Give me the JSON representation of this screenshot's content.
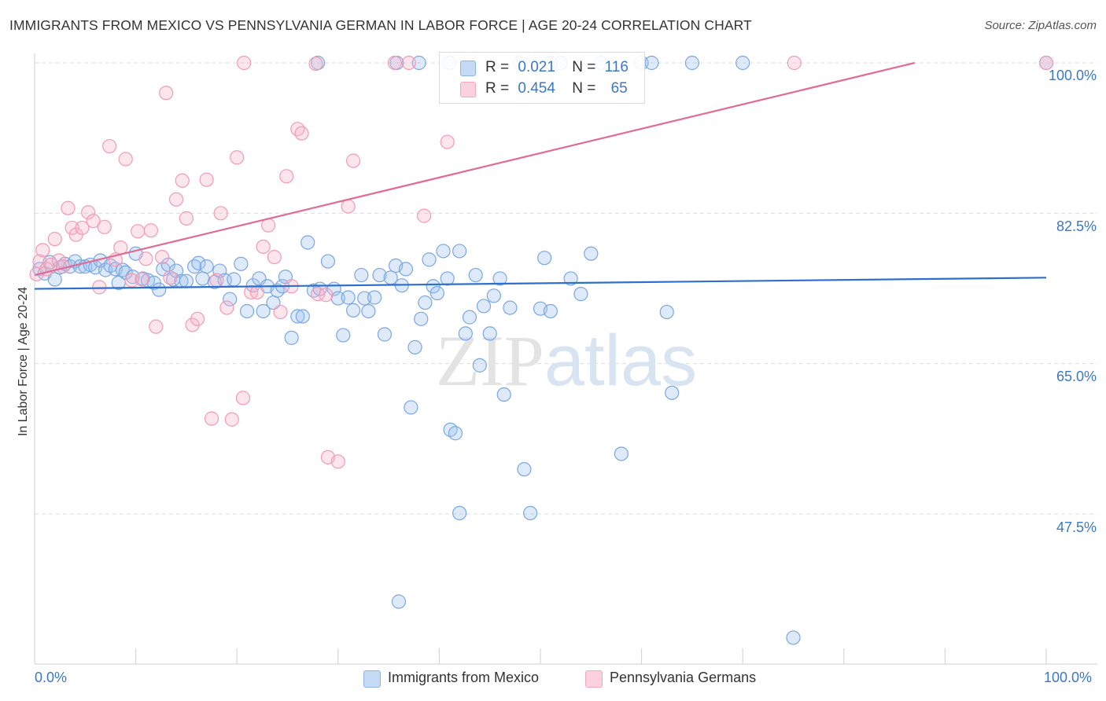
{
  "title": "IMMIGRANTS FROM MEXICO VS PENNSYLVANIA GERMAN IN LABOR FORCE | AGE 20-24 CORRELATION CHART",
  "source": "Source: ZipAtlas.com",
  "watermark": "ZIPatlas",
  "legend": {
    "r_label": "R =",
    "n_label": "N =",
    "rows": [
      {
        "r": "0.021",
        "n": "116",
        "color": "#9dbfea"
      },
      {
        "r": "0.454",
        "n": "65",
        "color": "#f5b5c8"
      }
    ]
  },
  "bottom_legend": [
    "Immigrants from Mexico",
    "Pennsylvania Germans"
  ],
  "x_ticks": {
    "left": "0.0%",
    "right": "100.0%"
  },
  "chart_data": {
    "type": "scatter",
    "title": "IMMIGRANTS FROM MEXICO VS PENNSYLVANIA GERMAN IN LABOR FORCE | AGE 20-24 CORRELATION CHART",
    "xlabel": "",
    "ylabel": "In Labor Force | Age 20-24",
    "xlim": [
      0,
      100
    ],
    "ylim": [
      31.5,
      102.0
    ],
    "y_ticks": [
      {
        "value": 100.0,
        "label": "100.0%"
      },
      {
        "value": 82.5,
        "label": "82.5%"
      },
      {
        "value": 65.0,
        "label": "65.0%"
      },
      {
        "value": 47.5,
        "label": "47.5%"
      }
    ],
    "x_tick_labels": [
      "0.0%",
      "100.0%"
    ],
    "grid": "horizontal dashed",
    "legend_position": "top-center",
    "series": [
      {
        "name": "Immigrants from Mexico",
        "color": "#6fa1e0",
        "trend": {
          "x": [
            0,
            100
          ],
          "y": [
            73.7,
            75.0
          ]
        },
        "points": [
          [
            0.5,
            76.0
          ],
          [
            1.0,
            75.5
          ],
          [
            1.5,
            76.8
          ],
          [
            2.0,
            74.8
          ],
          [
            2.5,
            76.2
          ],
          [
            3.0,
            76.6
          ],
          [
            3.5,
            76.3
          ],
          [
            4.0,
            76.9
          ],
          [
            4.5,
            76.3
          ],
          [
            5.0,
            76.3
          ],
          [
            5.5,
            76.5
          ],
          [
            6.0,
            76.2
          ],
          [
            6.5,
            77.0
          ],
          [
            7.0,
            75.9
          ],
          [
            7.5,
            76.4
          ],
          [
            8.0,
            76.0
          ],
          [
            8.3,
            74.4
          ],
          [
            8.7,
            75.9
          ],
          [
            9.0,
            75.6
          ],
          [
            9.7,
            75.1
          ],
          [
            10.0,
            77.8
          ],
          [
            10.7,
            74.9
          ],
          [
            11.2,
            74.7
          ],
          [
            11.8,
            74.4
          ],
          [
            12.3,
            73.6
          ],
          [
            12.7,
            76.0
          ],
          [
            13.2,
            76.5
          ],
          [
            13.7,
            74.8
          ],
          [
            14.0,
            75.8
          ],
          [
            14.5,
            74.6
          ],
          [
            15.0,
            74.6
          ],
          [
            15.8,
            76.3
          ],
          [
            16.2,
            76.7
          ],
          [
            16.6,
            74.9
          ],
          [
            17.0,
            76.3
          ],
          [
            17.8,
            74.5
          ],
          [
            18.3,
            75.8
          ],
          [
            18.8,
            74.7
          ],
          [
            19.3,
            72.5
          ],
          [
            19.7,
            74.8
          ],
          [
            20.4,
            76.6
          ],
          [
            21.0,
            71.1
          ],
          [
            21.6,
            74.1
          ],
          [
            22.2,
            74.9
          ],
          [
            22.6,
            71.1
          ],
          [
            23.0,
            74.0
          ],
          [
            23.6,
            72.1
          ],
          [
            24.0,
            73.5
          ],
          [
            24.5,
            74.0
          ],
          [
            24.8,
            75.1
          ],
          [
            25.4,
            68.0
          ],
          [
            26.0,
            70.5
          ],
          [
            26.5,
            70.5
          ],
          [
            27.0,
            79.1
          ],
          [
            27.6,
            73.5
          ],
          [
            28.2,
            73.7
          ],
          [
            29.0,
            76.9
          ],
          [
            29.6,
            73.7
          ],
          [
            30.0,
            72.6
          ],
          [
            30.5,
            68.3
          ],
          [
            31.0,
            72.7
          ],
          [
            31.5,
            71.2
          ],
          [
            32.3,
            75.3
          ],
          [
            32.6,
            72.6
          ],
          [
            33.0,
            71.1
          ],
          [
            33.6,
            72.7
          ],
          [
            34.1,
            75.3
          ],
          [
            34.6,
            68.4
          ],
          [
            35.2,
            75.0
          ],
          [
            35.7,
            76.4
          ],
          [
            36.3,
            74.1
          ],
          [
            36.7,
            76.0
          ],
          [
            37.2,
            59.9
          ],
          [
            37.6,
            66.9
          ],
          [
            38.2,
            70.2
          ],
          [
            38.6,
            72.1
          ],
          [
            39.0,
            77.1
          ],
          [
            39.4,
            74.0
          ],
          [
            39.8,
            73.2
          ],
          [
            40.4,
            78.1
          ],
          [
            40.8,
            74.9
          ],
          [
            41.1,
            57.3
          ],
          [
            42.0,
            78.1
          ],
          [
            42.6,
            68.5
          ],
          [
            43.0,
            70.4
          ],
          [
            43.6,
            75.3
          ],
          [
            44.0,
            64.8
          ],
          [
            44.4,
            71.7
          ],
          [
            45.0,
            68.5
          ],
          [
            45.4,
            72.9
          ],
          [
            46.0,
            74.9
          ],
          [
            46.4,
            61.4
          ],
          [
            47.0,
            71.5
          ],
          [
            48.4,
            52.7
          ],
          [
            49.0,
            47.6
          ],
          [
            50.0,
            71.4
          ],
          [
            50.4,
            77.3
          ],
          [
            51.0,
            71.1
          ],
          [
            53.0,
            74.9
          ],
          [
            54.0,
            73.1
          ],
          [
            55.0,
            77.8
          ],
          [
            56.0,
            100.0
          ],
          [
            58.0,
            54.5
          ],
          [
            60.0,
            100.0
          ],
          [
            62.5,
            71.0
          ],
          [
            63.0,
            61.6
          ],
          [
            65.0,
            100.0
          ],
          [
            70.0,
            100.0
          ],
          [
            75.0,
            33.1
          ],
          [
            100.0,
            100.0
          ],
          [
            35.8,
            100.0
          ],
          [
            38.0,
            100.0
          ],
          [
            48.0,
            100.0
          ],
          [
            51.0,
            100.0
          ],
          [
            52.0,
            100.0
          ],
          [
            61.0,
            100.0
          ],
          [
            28.0,
            100.0
          ],
          [
            41.0,
            100.0
          ],
          [
            36.0,
            37.3
          ],
          [
            42.0,
            47.6
          ],
          [
            41.6,
            56.9
          ]
        ]
      },
      {
        "name": "Pennsylvania Germans",
        "color": "#f19db6",
        "trend": {
          "x": [
            0,
            87.0
          ],
          "y": [
            75.3,
            100.0
          ]
        },
        "points": [
          [
            0.2,
            75.4
          ],
          [
            0.5,
            76.9
          ],
          [
            0.8,
            78.2
          ],
          [
            1.2,
            76.0
          ],
          [
            1.6,
            76.5
          ],
          [
            2.0,
            79.5
          ],
          [
            2.4,
            77.0
          ],
          [
            2.8,
            76.3
          ],
          [
            3.3,
            83.1
          ],
          [
            3.7,
            80.8
          ],
          [
            4.1,
            80.0
          ],
          [
            4.7,
            80.8
          ],
          [
            5.3,
            82.6
          ],
          [
            5.8,
            81.6
          ],
          [
            6.4,
            73.9
          ],
          [
            6.9,
            80.9
          ],
          [
            7.4,
            90.3
          ],
          [
            8.0,
            77.1
          ],
          [
            8.5,
            78.5
          ],
          [
            9.0,
            88.8
          ],
          [
            9.6,
            74.7
          ],
          [
            10.2,
            80.4
          ],
          [
            10.6,
            74.8
          ],
          [
            11.0,
            77.2
          ],
          [
            11.5,
            80.5
          ],
          [
            12.0,
            69.3
          ],
          [
            12.6,
            77.4
          ],
          [
            13.0,
            96.5
          ],
          [
            13.4,
            75.0
          ],
          [
            14.0,
            84.1
          ],
          [
            14.6,
            86.3
          ],
          [
            15.0,
            81.9
          ],
          [
            15.6,
            69.5
          ],
          [
            16.1,
            70.2
          ],
          [
            17.0,
            86.4
          ],
          [
            17.5,
            58.6
          ],
          [
            18.0,
            74.7
          ],
          [
            18.4,
            82.5
          ],
          [
            19.0,
            71.5
          ],
          [
            19.5,
            58.5
          ],
          [
            20.0,
            89.0
          ],
          [
            20.6,
            61.0
          ],
          [
            21.4,
            73.3
          ],
          [
            22.0,
            73.3
          ],
          [
            22.6,
            78.6
          ],
          [
            23.1,
            81.1
          ],
          [
            23.7,
            77.4
          ],
          [
            24.3,
            71.0
          ],
          [
            24.9,
            86.8
          ],
          [
            25.4,
            74.0
          ],
          [
            26.0,
            92.3
          ],
          [
            26.4,
            91.8
          ],
          [
            28.0,
            73.1
          ],
          [
            29.0,
            54.1
          ],
          [
            30.0,
            53.6
          ],
          [
            31.0,
            83.3
          ],
          [
            31.5,
            88.6
          ],
          [
            38.5,
            82.2
          ],
          [
            40.8,
            90.8
          ],
          [
            28.8,
            73.0
          ],
          [
            27.8,
            99.9
          ],
          [
            20.7,
            100.0
          ],
          [
            35.6,
            100.0
          ],
          [
            37.0,
            100.0
          ],
          [
            75.1,
            100.0
          ],
          [
            100.0,
            100.0
          ]
        ]
      }
    ]
  }
}
